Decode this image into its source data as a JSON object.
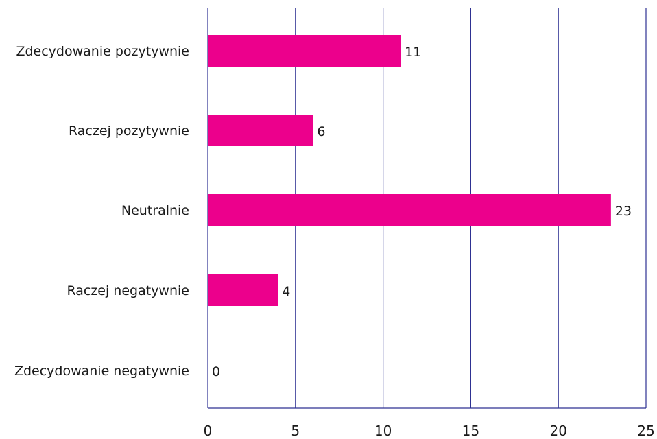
{
  "chart_data": {
    "type": "bar",
    "orientation": "horizontal",
    "categories": [
      "Zdecydowanie pozytywnie",
      "Raczej pozytywnie",
      "Neutralnie",
      "Raczej negatywnie",
      "Zdecydowanie negatywnie"
    ],
    "values": [
      11,
      6,
      23,
      4,
      0
    ],
    "xlim": [
      0,
      25
    ],
    "xticks": [
      "0",
      "5",
      "10",
      "15",
      "20",
      "25"
    ],
    "title": "",
    "xlabel": "",
    "ylabel": "",
    "grid": true,
    "colors": {
      "bar": "#ec008c",
      "grid": "#2e3192"
    }
  }
}
